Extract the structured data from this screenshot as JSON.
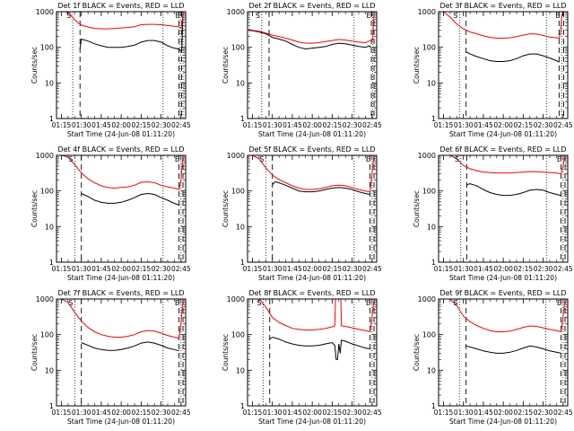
{
  "figure": {
    "x_tick_labels": [
      "01:15",
      "01:30",
      "01:45",
      "02:00",
      "02:15",
      "02:30",
      "02:45"
    ],
    "x_tick_values_min": [
      75,
      90,
      105,
      120,
      135,
      150,
      165
    ],
    "x_range_min": [
      71.3,
      168.5
    ],
    "xlabel": "Start Time (24-Jun-08 01:11:20)",
    "ylabel": "Counts/sec",
    "y_tick_labels": [
      "1",
      "10",
      "100",
      "1000"
    ],
    "y_scale": "log",
    "ylim": [
      1,
      1000
    ],
    "marker_labels": {
      "S": "S",
      "E": "E"
    },
    "colors": {
      "events": "#000000",
      "lld": "#ff0000"
    }
  },
  "chart_data": [
    {
      "type": "line",
      "title": "Det 1f BLACK = Events, RED = LLD",
      "saa_start_min": 83.5,
      "saa_end_min": 165.5,
      "dotted_min": [
        83.5,
        151.5,
        164.5,
        166.5
      ],
      "dashed_min": [
        89,
        163.5,
        165.5
      ],
      "series": [
        {
          "name": "Events",
          "x": [
            89,
            90,
            95,
            100,
            105,
            110,
            115,
            120,
            125,
            130,
            135,
            140,
            145,
            150,
            155,
            158,
            160,
            163,
            165.5,
            166.5,
            167,
            168.5
          ],
          "y": [
            90,
            170,
            150,
            125,
            110,
            100,
            100,
            100,
            105,
            115,
            140,
            155,
            155,
            140,
            110,
            100,
            95,
            90,
            75,
            1000,
            1000,
            1000
          ]
        },
        {
          "name": "LLD",
          "x": [
            72,
            75,
            78,
            81,
            84,
            87,
            90,
            95,
            100,
            105,
            110,
            115,
            120,
            125,
            130,
            135,
            140,
            145,
            150,
            155,
            160,
            163,
            165.5,
            166.5,
            167,
            168.5
          ],
          "y": [
            1000,
            1000,
            1000,
            900,
            650,
            500,
            420,
            370,
            340,
            330,
            330,
            340,
            350,
            360,
            380,
            430,
            440,
            440,
            430,
            410,
            390,
            380,
            350,
            1000,
            1000,
            1000
          ]
        }
      ]
    },
    {
      "type": "line",
      "title": "Det 2f BLACK = Events, RED = LLD",
      "saa_start_min": 82,
      "saa_end_min": 165.5,
      "dotted_min": [
        82,
        151.5,
        165.5
      ],
      "dashed_min": [
        87.5,
        164.5,
        166.5
      ],
      "series": [
        {
          "name": "Events",
          "x": [
            72,
            75,
            80,
            85,
            90,
            95,
            100,
            105,
            110,
            115,
            120,
            125,
            130,
            135,
            140,
            145,
            150,
            155,
            160,
            163,
            164.5
          ],
          "y": [
            300,
            290,
            270,
            240,
            190,
            170,
            150,
            120,
            100,
            90,
            95,
            100,
            105,
            120,
            130,
            125,
            115,
            105,
            100,
            110,
            95
          ]
        },
        {
          "name": "LLD",
          "x": [
            72,
            75,
            80,
            85,
            90,
            95,
            100,
            105,
            110,
            115,
            120,
            125,
            130,
            135,
            140,
            145,
            150,
            155,
            160,
            163,
            165.5,
            166.5,
            167,
            168.5
          ],
          "y": [
            320,
            300,
            280,
            250,
            220,
            200,
            180,
            160,
            140,
            130,
            130,
            135,
            145,
            155,
            165,
            160,
            150,
            140,
            135,
            150,
            160,
            1000,
            1000,
            1000
          ]
        }
      ]
    },
    {
      "type": "line",
      "title": "Det 3f BLACK = Events, RED = LLD",
      "saa_start_min": 87,
      "saa_end_min": 164,
      "dotted_min": [
        87,
        152.5,
        164
      ],
      "dashed_min": [
        92,
        162,
        165.5
      ],
      "series": [
        {
          "name": "Events",
          "x": [
            92,
            95,
            100,
            105,
            110,
            115,
            120,
            125,
            130,
            135,
            140,
            145,
            150,
            155,
            158,
            160,
            162
          ],
          "y": [
            75,
            65,
            55,
            48,
            42,
            40,
            40,
            42,
            48,
            58,
            65,
            65,
            58,
            50,
            45,
            42,
            38
          ]
        },
        {
          "name": "LLD",
          "x": [
            72,
            75,
            80,
            85,
            90,
            95,
            100,
            105,
            110,
            115,
            120,
            125,
            130,
            135,
            140,
            145,
            150,
            155,
            160,
            162,
            163,
            164,
            165,
            168.5
          ],
          "y": [
            1000,
            1000,
            700,
            450,
            330,
            270,
            240,
            210,
            190,
            180,
            180,
            185,
            200,
            220,
            240,
            235,
            215,
            195,
            185,
            180,
            250,
            700,
            1000,
            1000
          ]
        }
      ]
    },
    {
      "type": "line",
      "title": "Det 4f BLACK = Events, RED = LLD",
      "saa_start_min": 85,
      "saa_end_min": 165,
      "dotted_min": [
        85,
        151.5,
        165
      ],
      "dashed_min": [
        90,
        163.5,
        166.5
      ],
      "series": [
        {
          "name": "Events",
          "x": [
            90,
            95,
            100,
            105,
            110,
            115,
            120,
            125,
            130,
            135,
            140,
            145,
            150,
            155,
            160,
            163.5
          ],
          "y": [
            85,
            70,
            55,
            48,
            45,
            45,
            48,
            55,
            65,
            80,
            85,
            80,
            65,
            55,
            45,
            40
          ]
        },
        {
          "name": "LLD",
          "x": [
            72,
            75,
            80,
            85,
            90,
            95,
            100,
            105,
            110,
            115,
            120,
            125,
            130,
            135,
            140,
            145,
            150,
            155,
            160,
            163.5,
            165,
            166.5,
            168.5
          ],
          "y": [
            1000,
            1000,
            900,
            550,
            320,
            220,
            170,
            140,
            125,
            120,
            125,
            130,
            145,
            175,
            180,
            170,
            145,
            130,
            120,
            110,
            200,
            1000,
            1000
          ]
        }
      ]
    },
    {
      "type": "line",
      "title": "Det 5f BLACK = Events, RED = LLD",
      "saa_start_min": 85,
      "saa_end_min": 165,
      "dotted_min": [
        85,
        151.5,
        165
      ],
      "dashed_min": [
        90,
        163.5,
        166.5
      ],
      "series": [
        {
          "name": "Events",
          "x": [
            90,
            92,
            95,
            100,
            105,
            110,
            115,
            120,
            125,
            130,
            135,
            140,
            145,
            150,
            155,
            160,
            163.5
          ],
          "y": [
            150,
            180,
            170,
            145,
            120,
            100,
            95,
            95,
            100,
            110,
            120,
            125,
            120,
            110,
            95,
            85,
            80
          ]
        },
        {
          "name": "LLD",
          "x": [
            72,
            75,
            80,
            85,
            90,
            95,
            100,
            105,
            110,
            115,
            120,
            125,
            130,
            135,
            140,
            145,
            150,
            155,
            160,
            163.5,
            165,
            166.5,
            168.5
          ],
          "y": [
            1000,
            1000,
            800,
            450,
            280,
            210,
            170,
            140,
            120,
            110,
            110,
            115,
            125,
            140,
            145,
            140,
            125,
            110,
            100,
            95,
            300,
            1000,
            1000
          ]
        }
      ]
    },
    {
      "type": "line",
      "title": "Det 6f BLACK = Events, RED = LLD",
      "saa_start_min": 88,
      "saa_end_min": 165,
      "dotted_min": [
        88,
        152.5,
        165
      ],
      "dashed_min": [
        92.5,
        163.5,
        166.5
      ],
      "series": [
        {
          "name": "Events",
          "x": [
            92.5,
            95,
            100,
            105,
            110,
            115,
            120,
            125,
            130,
            135,
            140,
            145,
            150,
            155,
            160,
            163.5
          ],
          "y": [
            150,
            160,
            140,
            110,
            90,
            80,
            75,
            75,
            80,
            90,
            105,
            110,
            105,
            90,
            80,
            75
          ]
        },
        {
          "name": "LLD",
          "x": [
            72,
            75,
            80,
            85,
            90,
            95,
            100,
            105,
            110,
            115,
            120,
            125,
            130,
            135,
            140,
            145,
            150,
            155,
            160,
            163.5,
            165,
            166.5,
            168.5
          ],
          "y": [
            1000,
            1000,
            1000,
            800,
            520,
            420,
            370,
            340,
            330,
            320,
            320,
            320,
            330,
            340,
            350,
            345,
            340,
            330,
            320,
            300,
            500,
            1000,
            1000
          ]
        }
      ]
    },
    {
      "type": "line",
      "title": "Det 7f BLACK = Events, RED = LLD",
      "saa_start_min": 85,
      "saa_end_min": 165,
      "dotted_min": [
        85,
        151.5,
        165
      ],
      "dashed_min": [
        90,
        163.5,
        166.5
      ],
      "series": [
        {
          "name": "Events",
          "x": [
            90,
            95,
            100,
            105,
            110,
            115,
            120,
            125,
            130,
            135,
            140,
            145,
            150,
            155,
            160,
            163.5
          ],
          "y": [
            60,
            50,
            42,
            38,
            36,
            36,
            38,
            42,
            48,
            58,
            62,
            58,
            50,
            42,
            38,
            35
          ]
        },
        {
          "name": "LLD",
          "x": [
            72,
            75,
            80,
            85,
            90,
            95,
            100,
            105,
            110,
            115,
            120,
            125,
            130,
            135,
            140,
            145,
            150,
            155,
            160,
            163.5,
            165,
            166.5,
            168.5
          ],
          "y": [
            1000,
            1000,
            800,
            420,
            240,
            160,
            120,
            100,
            90,
            85,
            85,
            90,
            100,
            120,
            130,
            125,
            110,
            95,
            85,
            80,
            200,
            1000,
            1000
          ]
        }
      ]
    },
    {
      "type": "line",
      "title": "Det 8f BLACK = Events, RED = LLD",
      "saa_start_min": 83,
      "saa_end_min": 165,
      "dotted_min": [
        83,
        151.5,
        165
      ],
      "dashed_min": [
        88,
        163.5,
        166.5
      ],
      "series": [
        {
          "name": "Events",
          "x": [
            88,
            90,
            95,
            100,
            105,
            110,
            115,
            120,
            125,
            130,
            135,
            137,
            138,
            139,
            140,
            141,
            142,
            145,
            150,
            155,
            160,
            163.5
          ],
          "y": [
            75,
            85,
            75,
            62,
            55,
            50,
            48,
            48,
            50,
            55,
            60,
            50,
            20,
            20,
            55,
            30,
            70,
            65,
            55,
            48,
            42,
            40
          ]
        },
        {
          "name": "LLD",
          "x": [
            72,
            75,
            80,
            85,
            90,
            95,
            100,
            105,
            110,
            115,
            120,
            125,
            130,
            135,
            137,
            137.5,
            141.5,
            142,
            145,
            150,
            155,
            160,
            163.5,
            165,
            166.5,
            168.5
          ],
          "y": [
            1000,
            1000,
            1000,
            600,
            300,
            220,
            180,
            150,
            140,
            135,
            135,
            140,
            150,
            165,
            175,
            1000,
            1000,
            175,
            170,
            155,
            140,
            130,
            120,
            300,
            1000,
            1000
          ]
        }
      ]
    },
    {
      "type": "line",
      "title": "Det 9f BLACK = Events, RED = LLD",
      "saa_start_min": 87,
      "saa_end_min": 165,
      "dotted_min": [
        87,
        152,
        165
      ],
      "dashed_min": [
        92,
        163.5,
        166.5
      ],
      "series": [
        {
          "name": "Events",
          "x": [
            92,
            95,
            100,
            105,
            110,
            115,
            120,
            125,
            130,
            135,
            140,
            145,
            150,
            155,
            160,
            163.5
          ],
          "y": [
            48,
            45,
            40,
            35,
            32,
            30,
            30,
            32,
            36,
            42,
            48,
            45,
            40,
            35,
            32,
            30
          ]
        },
        {
          "name": "LLD",
          "x": [
            72,
            75,
            80,
            85,
            90,
            95,
            100,
            105,
            110,
            115,
            120,
            125,
            130,
            135,
            140,
            145,
            150,
            155,
            160,
            163.5,
            165,
            166.5,
            168.5
          ],
          "y": [
            1000,
            1000,
            1000,
            650,
            330,
            230,
            180,
            150,
            130,
            120,
            120,
            125,
            140,
            160,
            175,
            170,
            155,
            140,
            130,
            120,
            300,
            1000,
            1000
          ]
        }
      ]
    }
  ]
}
